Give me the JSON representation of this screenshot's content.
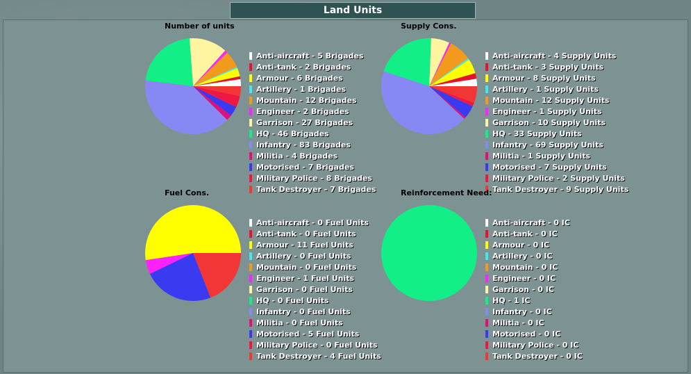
{
  "window": {
    "title": "Land Units"
  },
  "categories": [
    "Anti-aircraft",
    "Anti-tank",
    "Armour",
    "Artillery",
    "Mountain",
    "Engineer",
    "Garrison",
    "HQ",
    "Infantry",
    "Militia",
    "Motorised",
    "Military Police",
    "Tank Destroyer"
  ],
  "colors": [
    "#ffffff",
    "#e8102a",
    "#ffff00",
    "#44e8e8",
    "#f29a1c",
    "#ff22ff",
    "#fff5a0",
    "#11ef86",
    "#8888f4",
    "#e0107a",
    "#3a3af0",
    "#f01840",
    "#f23535"
  ],
  "chart_data": [
    {
      "type": "pie",
      "title": "Number of units",
      "values": [
        5,
        2,
        6,
        1,
        12,
        2,
        27,
        46,
        83,
        4,
        7,
        8,
        7
      ],
      "labels": [
        "Anti-aircraft - 5 Brigades",
        "Anti-tank - 2 Brigades",
        "Armour - 6 Brigades",
        "Artillery - 1 Brigades",
        "Mountain - 12 Brigades",
        "Engineer - 2 Brigades",
        "Garrison - 27 Brigades",
        "HQ - 46 Brigades",
        "Infantry - 83 Brigades",
        "Militia - 4 Brigades",
        "Motorised - 7 Brigades",
        "Military Police - 8 Brigades",
        "Tank Destroyer - 7 Brigades"
      ]
    },
    {
      "type": "pie",
      "title": "Supply Cons.",
      "values": [
        4,
        3,
        8,
        1,
        12,
        1,
        10,
        33,
        69,
        1,
        7,
        2,
        9
      ],
      "labels": [
        "Anti-aircraft - 4 Supply Units",
        "Anti-tank - 3 Supply Units",
        "Armour - 8 Supply Units",
        "Artillery - 1 Supply Units",
        "Mountain - 12 Supply Units",
        "Engineer - 1 Supply Units",
        "Garrison - 10 Supply Units",
        "HQ - 33 Supply Units",
        "Infantry - 69 Supply Units",
        "Militia - 1 Supply Units",
        "Motorised - 7 Supply Units",
        "Military Police - 2 Supply Units",
        "Tank Destroyer - 9 Supply Units"
      ]
    },
    {
      "type": "pie",
      "title": "Fuel Cons.",
      "values": [
        0,
        0,
        11,
        0,
        0,
        1,
        0,
        0,
        0,
        0,
        5,
        0,
        4
      ],
      "labels": [
        "Anti-aircraft - 0 Fuel Units",
        "Anti-tank - 0 Fuel Units",
        "Armour - 11 Fuel Units",
        "Artillery - 0 Fuel Units",
        "Mountain - 0 Fuel Units",
        "Engineer - 1 Fuel Units",
        "Garrison - 0 Fuel Units",
        "HQ - 0 Fuel Units",
        "Infantry - 0 Fuel Units",
        "Militia - 0 Fuel Units",
        "Motorised - 5 Fuel Units",
        "Military Police - 0 Fuel Units",
        "Tank Destroyer - 4 Fuel Units"
      ]
    },
    {
      "type": "pie",
      "title": "Reinforcement Need:",
      "values": [
        0,
        0,
        0,
        0,
        0,
        0,
        0,
        1,
        0,
        0,
        0,
        0,
        0
      ],
      "labels": [
        "Anti-aircraft - 0 IC",
        "Anti-tank - 0 IC",
        "Armour - 0 IC",
        "Artillery - 0 IC",
        "Mountain - 0 IC",
        "Engineer - 0 IC",
        "Garrison - 0 IC",
        "HQ - 1 IC",
        "Infantry - 0 IC",
        "Militia - 0 IC",
        "Motorised - 0 IC",
        "Military Police - 0 IC",
        "Tank Destroyer - 0 IC"
      ]
    }
  ]
}
